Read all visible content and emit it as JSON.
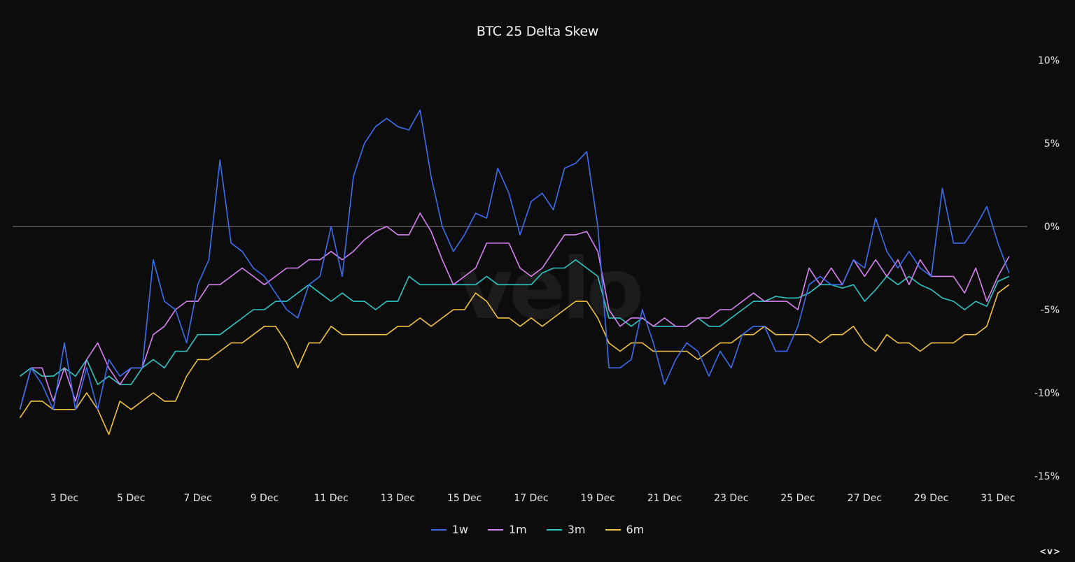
{
  "chart_data": {
    "type": "line",
    "title": "BTC 25 Delta Skew",
    "xlabel": "",
    "ylabel": "",
    "x": {
      "start": "1 Dec 16:00",
      "interval_hours": 8
    },
    "x_ticks": [
      "3 Dec",
      "5 Dec",
      "7 Dec",
      "9 Dec",
      "11 Dec",
      "13 Dec",
      "15 Dec",
      "17 Dec",
      "19 Dec",
      "21 Dec",
      "23 Dec",
      "25 Dec",
      "27 Dec",
      "29 Dec",
      "31 Dec"
    ],
    "y_ticks": [
      10,
      5,
      0,
      -5,
      -10,
      -15
    ],
    "y_tick_labels": [
      "10%",
      "5%",
      "0%",
      "-5%",
      "-10%",
      "-15%"
    ],
    "ylim": [
      -15,
      10
    ],
    "y_axis_side": "right",
    "reference_line": 0,
    "grid": false,
    "legend_position": "bottom",
    "watermark": "velo",
    "logo": "<v>",
    "series": [
      {
        "name": "1w",
        "color": "#3d6ef0",
        "values": [
          -11,
          -8.5,
          -9.5,
          -11,
          -7,
          -11,
          -8.5,
          -11,
          -8,
          -9,
          -8.5,
          -8.5,
          -2,
          -4.5,
          -5,
          -7,
          -3.5,
          -2,
          4,
          -1,
          -1.5,
          -2.5,
          -3,
          -4,
          -5,
          -5.5,
          -3.5,
          -3,
          0,
          -3,
          3,
          5,
          6,
          6.5,
          6,
          5.8,
          7,
          3,
          0,
          -1.5,
          -0.5,
          0.8,
          0.5,
          3.5,
          2,
          -0.5,
          1.5,
          2,
          1,
          3.5,
          3.8,
          4.5,
          0,
          -8.5,
          -8.5,
          -8,
          -5,
          -7,
          -9.5,
          -8,
          -7,
          -7.5,
          -9,
          -7.5,
          -8.5,
          -6.5,
          -6,
          -6,
          -7.5,
          -7.5,
          -6,
          -3.5,
          -3,
          -3.5,
          -3.5,
          -2,
          -2.5,
          0.5,
          -1.5,
          -2.5,
          -1.5,
          -2.5,
          -3,
          2.3,
          -1,
          -1,
          0,
          1.2,
          -1,
          -2.8
        ]
      },
      {
        "name": "1m",
        "color": "#d782f0",
        "values": [
          -11,
          -8.5,
          -8.5,
          -10.5,
          -8.5,
          -10.5,
          -8,
          -7,
          -8.5,
          -9.5,
          -8.5,
          -8.5,
          -6.5,
          -6,
          -5,
          -4.5,
          -4.5,
          -3.5,
          -3.5,
          -3,
          -2.5,
          -3,
          -3.5,
          -3,
          -2.5,
          -2.5,
          -2,
          -2,
          -1.5,
          -2,
          -1.5,
          -0.8,
          -0.3,
          0,
          -0.5,
          -0.5,
          0.8,
          -0.3,
          -2,
          -3.5,
          -3,
          -2.5,
          -1,
          -1,
          -1,
          -2.5,
          -3,
          -2.5,
          -1.5,
          -0.5,
          -0.5,
          -0.3,
          -1.5,
          -5,
          -6,
          -5.5,
          -5.5,
          -6,
          -5.5,
          -6,
          -6,
          -5.5,
          -5.5,
          -5,
          -5,
          -4.5,
          -4,
          -4.5,
          -4.5,
          -4.5,
          -5,
          -2.5,
          -3.5,
          -2.5,
          -3.5,
          -2,
          -3,
          -2,
          -3,
          -2,
          -3.5,
          -2,
          -3,
          -3,
          -3,
          -4,
          -2.5,
          -4.5,
          -3,
          -1.8
        ]
      },
      {
        "name": "3m",
        "color": "#2ec4c4",
        "values": [
          -9,
          -8.5,
          -9,
          -9,
          -8.5,
          -9,
          -8,
          -9.5,
          -9,
          -9.5,
          -9.5,
          -8.5,
          -8,
          -8.5,
          -7.5,
          -7.5,
          -6.5,
          -6.5,
          -6.5,
          -6,
          -5.5,
          -5,
          -5,
          -4.5,
          -4.5,
          -4,
          -3.5,
          -4,
          -4.5,
          -4,
          -4.5,
          -4.5,
          -5,
          -4.5,
          -4.5,
          -3,
          -3.5,
          -3.5,
          -3.5,
          -3.5,
          -3.5,
          -3.5,
          -3,
          -3.5,
          -3.5,
          -3.5,
          -3.5,
          -2.8,
          -2.5,
          -2.5,
          -2,
          -2.5,
          -3,
          -5.5,
          -5.5,
          -6,
          -5.5,
          -6,
          -6,
          -6,
          -6,
          -5.5,
          -6,
          -6,
          -5.5,
          -5,
          -4.5,
          -4.5,
          -4.2,
          -4.3,
          -4.3,
          -4,
          -3.5,
          -3.5,
          -3.7,
          -3.5,
          -4.5,
          -3.8,
          -3,
          -3.5,
          -3,
          -3.5,
          -3.8,
          -4.3,
          -4.5,
          -5,
          -4.5,
          -4.8,
          -3.3,
          -3
        ]
      },
      {
        "name": "6m",
        "color": "#f0c040",
        "values": [
          -11.5,
          -10.5,
          -10.5,
          -11,
          -11,
          -11,
          -10,
          -11,
          -12.5,
          -10.5,
          -11,
          -10.5,
          -10,
          -10.5,
          -10.5,
          -9,
          -8,
          -8,
          -7.5,
          -7,
          -7,
          -6.5,
          -6,
          -6,
          -7,
          -8.5,
          -7,
          -7,
          -6,
          -6.5,
          -6.5,
          -6.5,
          -6.5,
          -6.5,
          -6,
          -6,
          -5.5,
          -6,
          -5.5,
          -5,
          -5,
          -4,
          -4.5,
          -5.5,
          -5.5,
          -6,
          -5.5,
          -6,
          -5.5,
          -5,
          -4.5,
          -4.5,
          -5.5,
          -7,
          -7.5,
          -7,
          -7,
          -7.5,
          -7.5,
          -7.5,
          -7.5,
          -8,
          -7.5,
          -7,
          -7,
          -6.5,
          -6.5,
          -6,
          -6.5,
          -6.5,
          -6.5,
          -6.5,
          -7,
          -6.5,
          -6.5,
          -6,
          -7,
          -7.5,
          -6.5,
          -7,
          -7,
          -7.5,
          -7,
          -7,
          -7,
          -6.5,
          -6.5,
          -6,
          -4,
          -3.5
        ]
      }
    ]
  }
}
